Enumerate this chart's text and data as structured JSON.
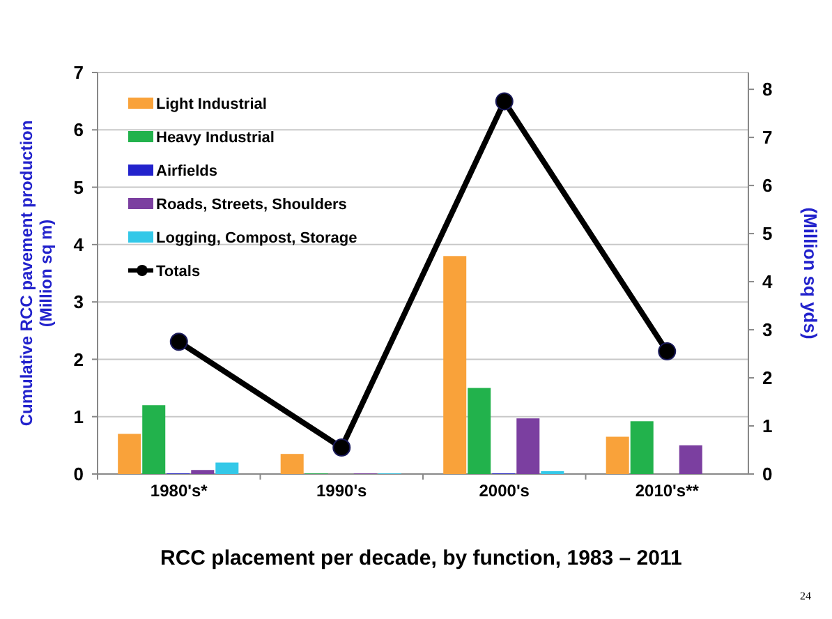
{
  "chart_data": {
    "type": "bar",
    "title": "RCC placement per decade, by function, 1983 – 2011",
    "ylabel": "Cumulative RCC pavement production\n(Million sq m)",
    "y2label": "(Million sq yds)",
    "annotations": [
      "24"
    ],
    "categories": [
      "1980's*",
      "1990's",
      "2000's",
      "2010's**"
    ],
    "series": [
      {
        "name": "Light Industrial",
        "color": "#f9a23a",
        "values": [
          0.7,
          0.35,
          3.8,
          0.65
        ]
      },
      {
        "name": "Heavy Industrial",
        "color": "#22b24c",
        "values": [
          1.2,
          0.01,
          1.5,
          0.92
        ]
      },
      {
        "name": "Airfields",
        "color": "#2222cc",
        "values": [
          0.01,
          0,
          0.01,
          0
        ]
      },
      {
        "name": "Roads, Streets, Shoulders",
        "color": "#7b3fa0",
        "values": [
          0.07,
          0.01,
          0.97,
          0.5
        ]
      },
      {
        "name": "Logging, Compost, Storage",
        "color": "#33c8e8",
        "values": [
          0.2,
          0.01,
          0.05,
          0
        ]
      },
      {
        "name": "Totals",
        "type": "line",
        "axis": "y2",
        "color": "#000000",
        "marker": "circle",
        "values": [
          2.75,
          0.55,
          7.75,
          2.55
        ]
      }
    ],
    "ylim": [
      0,
      7
    ],
    "yticks": [
      0,
      1,
      2,
      3,
      4,
      5,
      6,
      7
    ],
    "y2lim": [
      0,
      8.35
    ],
    "y2ticks": [
      0,
      1,
      2,
      3,
      4,
      5,
      6,
      7,
      8
    ],
    "grid": "y",
    "legend": "top left"
  }
}
